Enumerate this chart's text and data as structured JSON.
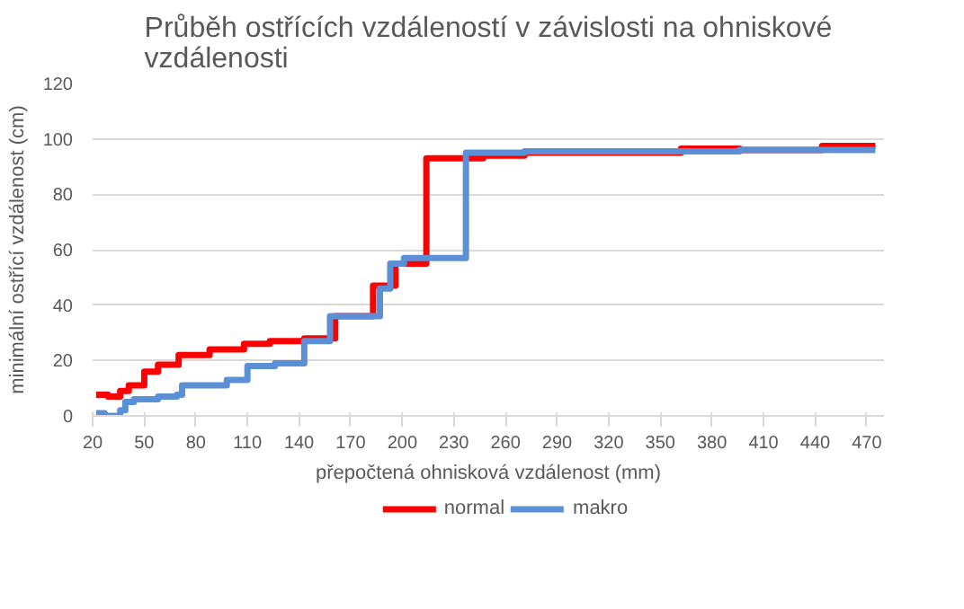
{
  "chart_data": {
    "type": "step",
    "title": "Průběh ostřících vzdáleností v závislosti na ohniskové\nvzdálenosti",
    "xlabel": "přepočtená ohnisková vzdálenost (mm)",
    "ylabel": "minimální ostřící vzdálenost (cm)",
    "xlim": [
      20,
      480
    ],
    "xticks": [
      20,
      50,
      80,
      110,
      140,
      170,
      200,
      230,
      260,
      290,
      320,
      350,
      380,
      410,
      440,
      470
    ],
    "ylim": [
      0,
      120
    ],
    "yticks": [
      0,
      20,
      40,
      60,
      80,
      100,
      120
    ],
    "grid": "y",
    "legend": "bottom",
    "line_style": "solid",
    "series": [
      {
        "name": "normal",
        "color": "#ff0000",
        "x": [
          22,
          29,
          36,
          41,
          50,
          58,
          70,
          88,
          108,
          123,
          143,
          161,
          183,
          196,
          214,
          247,
          271,
          362,
          396,
          444,
          475
        ],
        "values": [
          7.6,
          7,
          9,
          11,
          16,
          18.5,
          22,
          24,
          26,
          27,
          28,
          36,
          47,
          55,
          93,
          94,
          95,
          96.5,
          96,
          97.5,
          97.5
        ]
      },
      {
        "name": "makro",
        "color": "#5b8fd6",
        "x": [
          22,
          27,
          36,
          39,
          44,
          58,
          69,
          72,
          98,
          110,
          126,
          143,
          158,
          187,
          193,
          201,
          237,
          271,
          396,
          475
        ],
        "values": [
          1,
          0,
          2,
          5,
          6,
          7,
          7.6,
          11,
          13,
          18,
          19,
          27,
          36,
          46,
          55,
          57,
          95,
          95.5,
          96,
          96
        ]
      }
    ]
  }
}
